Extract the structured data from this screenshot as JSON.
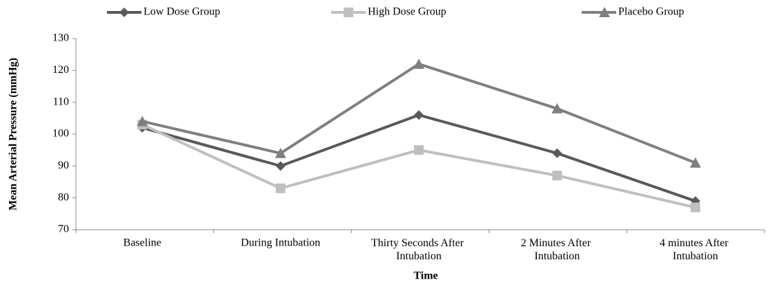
{
  "chart_data": {
    "type": "line",
    "y_label": "Mean Arterial Pressure (mmHg)",
    "x_label": "Time",
    "categories": [
      "Baseline",
      "During Intubation",
      "Thirty Seconds After Intubation",
      "2 Minutes After Intubation",
      "4 minutes After Intubation"
    ],
    "series": [
      {
        "name": "Low Dose Group",
        "color": "#595959",
        "marker": "diamond",
        "values": [
          102,
          90,
          106,
          94,
          79
        ]
      },
      {
        "name": "High Dose Group",
        "color": "#bfbfbf",
        "marker": "square",
        "values": [
          103,
          83,
          95,
          87,
          77
        ]
      },
      {
        "name": "Placebo Group",
        "color": "#7f7f7f",
        "marker": "triangle",
        "values": [
          104,
          94,
          122,
          108,
          91
        ]
      }
    ],
    "ylim": [
      70,
      130
    ],
    "yticks": [
      70,
      80,
      90,
      100,
      110,
      120,
      130
    ],
    "grid": false,
    "legend": "top"
  }
}
